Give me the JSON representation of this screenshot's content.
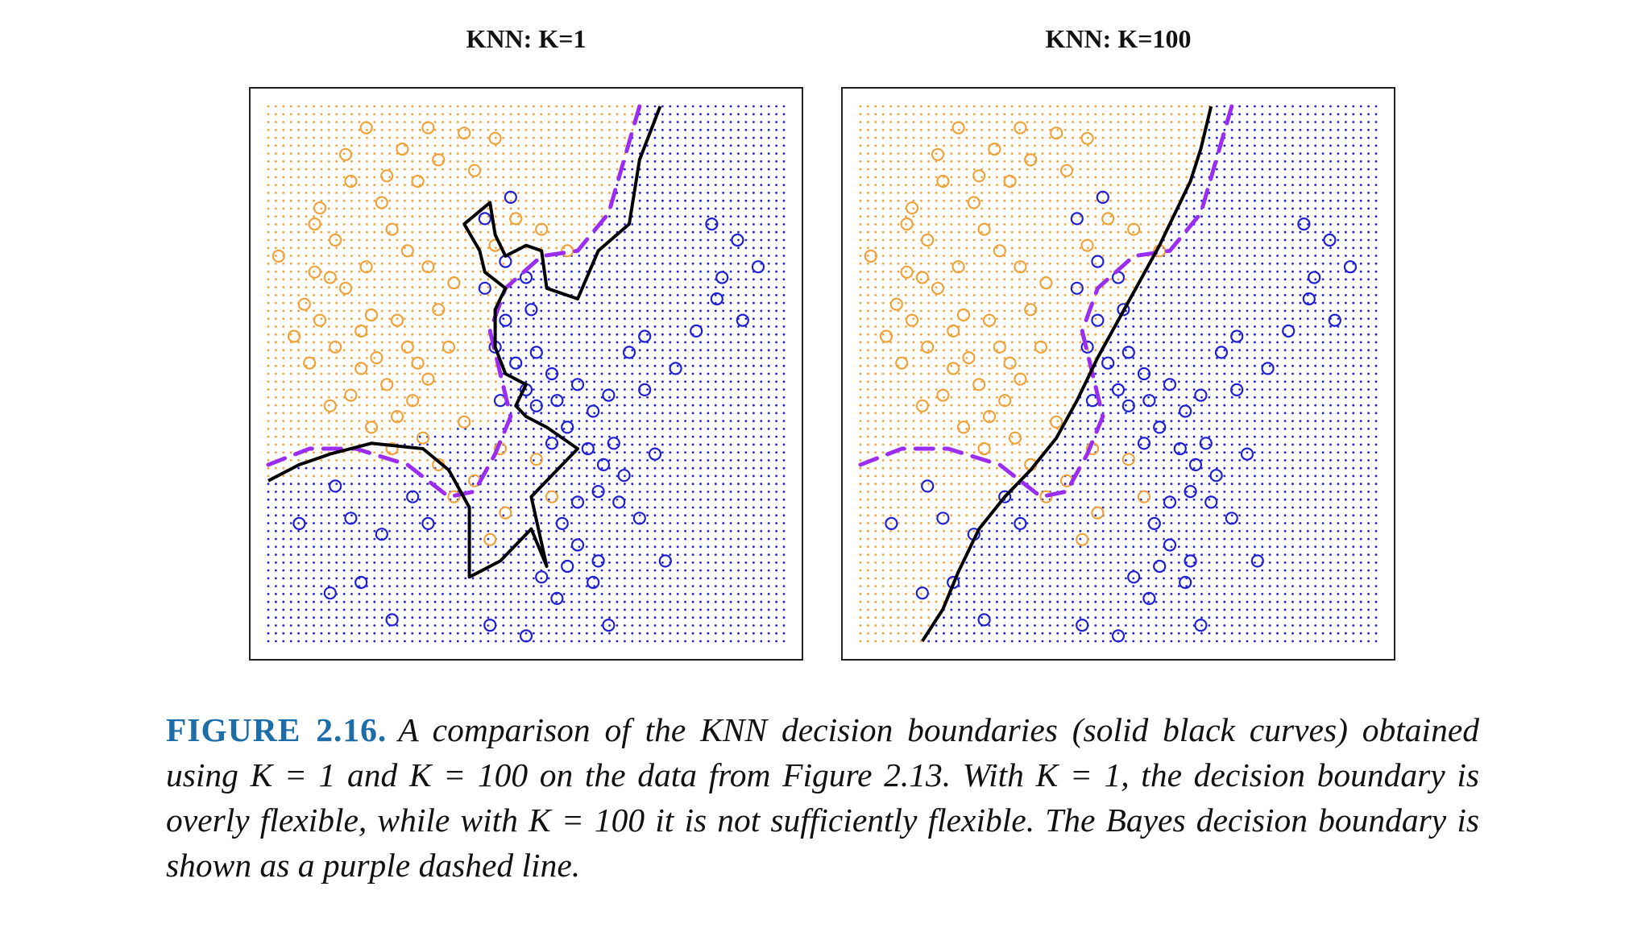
{
  "figure": {
    "label": "FIGURE 2.16.",
    "caption": "A comparison of the KNN decision boundaries (solid black curves) obtained using K = 1 and K = 100 on the data from Figure 2.13. With K = 1, the decision boundary is overly flexible, while with K = 100 it is not sufficiently flexible. The Bayes decision boundary is shown as a purple dashed line."
  },
  "colors": {
    "orange": "#f0a23a",
    "blue": "#1f1fd6",
    "boundary": "#000000",
    "bayes": "#9b2df0",
    "frame": "#222222"
  },
  "chart_data": [
    {
      "type": "scatter",
      "title": "KNN: K=1",
      "xlim": [
        0,
        1
      ],
      "ylim": [
        0,
        1
      ],
      "grid": "dotted background grid colored by predicted class",
      "series": [
        {
          "class": "orange",
          "points": [
            [
              0.02,
              0.72
            ],
            [
              0.09,
              0.78
            ],
            [
              0.1,
              0.81
            ],
            [
              0.13,
              0.75
            ],
            [
              0.12,
              0.68
            ],
            [
              0.15,
              0.66
            ],
            [
              0.18,
              0.58
            ],
            [
              0.2,
              0.61
            ],
            [
              0.25,
              0.6
            ],
            [
              0.27,
              0.55
            ],
            [
              0.29,
              0.52
            ],
            [
              0.31,
              0.49
            ],
            [
              0.28,
              0.45
            ],
            [
              0.25,
              0.42
            ],
            [
              0.23,
              0.48
            ],
            [
              0.21,
              0.53
            ],
            [
              0.18,
              0.51
            ],
            [
              0.16,
              0.46
            ],
            [
              0.13,
              0.55
            ],
            [
              0.1,
              0.6
            ],
            [
              0.07,
              0.63
            ],
            [
              0.05,
              0.57
            ],
            [
              0.08,
              0.52
            ],
            [
              0.12,
              0.44
            ],
            [
              0.2,
              0.4
            ],
            [
              0.24,
              0.36
            ],
            [
              0.3,
              0.38
            ],
            [
              0.33,
              0.62
            ],
            [
              0.36,
              0.67
            ],
            [
              0.31,
              0.7
            ],
            [
              0.27,
              0.73
            ],
            [
              0.24,
              0.77
            ],
            [
              0.22,
              0.82
            ],
            [
              0.29,
              0.86
            ],
            [
              0.33,
              0.9
            ],
            [
              0.4,
              0.88
            ],
            [
              0.44,
              0.94
            ],
            [
              0.38,
              0.95
            ],
            [
              0.31,
              0.96
            ],
            [
              0.26,
              0.92
            ],
            [
              0.23,
              0.87
            ],
            [
              0.19,
              0.96
            ],
            [
              0.15,
              0.91
            ],
            [
              0.16,
              0.86
            ],
            [
              0.44,
              0.74
            ],
            [
              0.48,
              0.79
            ],
            [
              0.53,
              0.77
            ],
            [
              0.58,
              0.73
            ],
            [
              0.33,
              0.33
            ],
            [
              0.38,
              0.41
            ],
            [
              0.45,
              0.36
            ],
            [
              0.52,
              0.34
            ],
            [
              0.55,
              0.27
            ],
            [
              0.46,
              0.24
            ],
            [
              0.43,
              0.19
            ],
            [
              0.36,
              0.27
            ],
            [
              0.4,
              0.3
            ],
            [
              0.19,
              0.7
            ],
            [
              0.09,
              0.69
            ],
            [
              0.35,
              0.55
            ]
          ]
        },
        {
          "class": "blue",
          "points": [
            [
              0.42,
              0.66
            ],
            [
              0.46,
              0.71
            ],
            [
              0.5,
              0.68
            ],
            [
              0.51,
              0.62
            ],
            [
              0.46,
              0.6
            ],
            [
              0.44,
              0.55
            ],
            [
              0.48,
              0.52
            ],
            [
              0.52,
              0.54
            ],
            [
              0.55,
              0.5
            ],
            [
              0.5,
              0.47
            ],
            [
              0.45,
              0.45
            ],
            [
              0.52,
              0.44
            ],
            [
              0.56,
              0.45
            ],
            [
              0.6,
              0.48
            ],
            [
              0.63,
              0.43
            ],
            [
              0.66,
              0.46
            ],
            [
              0.58,
              0.4
            ],
            [
              0.55,
              0.37
            ],
            [
              0.62,
              0.36
            ],
            [
              0.65,
              0.33
            ],
            [
              0.67,
              0.37
            ],
            [
              0.69,
              0.31
            ],
            [
              0.64,
              0.28
            ],
            [
              0.6,
              0.26
            ],
            [
              0.57,
              0.22
            ],
            [
              0.6,
              0.18
            ],
            [
              0.64,
              0.15
            ],
            [
              0.58,
              0.14
            ],
            [
              0.53,
              0.12
            ],
            [
              0.56,
              0.08
            ],
            [
              0.63,
              0.11
            ],
            [
              0.68,
              0.26
            ],
            [
              0.72,
              0.23
            ],
            [
              0.75,
              0.35
            ],
            [
              0.73,
              0.57
            ],
            [
              0.83,
              0.58
            ],
            [
              0.87,
              0.64
            ],
            [
              0.92,
              0.6
            ],
            [
              0.95,
              0.7
            ],
            [
              0.91,
              0.75
            ],
            [
              0.86,
              0.78
            ],
            [
              0.88,
              0.68
            ],
            [
              0.79,
              0.51
            ],
            [
              0.7,
              0.54
            ],
            [
              0.73,
              0.47
            ],
            [
              0.42,
              0.79
            ],
            [
              0.47,
              0.83
            ],
            [
              0.06,
              0.22
            ],
            [
              0.13,
              0.29
            ],
            [
              0.16,
              0.23
            ],
            [
              0.22,
              0.2
            ],
            [
              0.31,
              0.22
            ],
            [
              0.28,
              0.27
            ],
            [
              0.18,
              0.11
            ],
            [
              0.12,
              0.09
            ],
            [
              0.24,
              0.04
            ],
            [
              0.43,
              0.03
            ],
            [
              0.5,
              0.01
            ],
            [
              0.66,
              0.03
            ],
            [
              0.77,
              0.15
            ]
          ]
        }
      ],
      "boundary_k1": [
        [
          0.0,
          0.3
        ],
        [
          0.06,
          0.33
        ],
        [
          0.12,
          0.35
        ],
        [
          0.2,
          0.37
        ],
        [
          0.3,
          0.36
        ],
        [
          0.35,
          0.32
        ],
        [
          0.39,
          0.25
        ],
        [
          0.39,
          0.12
        ],
        [
          0.45,
          0.15
        ],
        [
          0.51,
          0.21
        ],
        [
          0.54,
          0.14
        ],
        [
          0.51,
          0.27
        ],
        [
          0.56,
          0.32
        ],
        [
          0.6,
          0.36
        ],
        [
          0.54,
          0.4
        ],
        [
          0.5,
          0.42
        ],
        [
          0.48,
          0.44
        ],
        [
          0.5,
          0.48
        ],
        [
          0.46,
          0.5
        ],
        [
          0.44,
          0.55
        ],
        [
          0.44,
          0.62
        ],
        [
          0.46,
          0.66
        ],
        [
          0.42,
          0.69
        ],
        [
          0.41,
          0.73
        ],
        [
          0.38,
          0.78
        ],
        [
          0.43,
          0.82
        ],
        [
          0.44,
          0.76
        ],
        [
          0.46,
          0.72
        ],
        [
          0.5,
          0.74
        ],
        [
          0.53,
          0.73
        ],
        [
          0.54,
          0.66
        ],
        [
          0.6,
          0.64
        ],
        [
          0.64,
          0.73
        ],
        [
          0.7,
          0.78
        ],
        [
          0.72,
          0.9
        ],
        [
          0.76,
          1.0
        ]
      ],
      "bayes": [
        [
          0.0,
          0.33
        ],
        [
          0.08,
          0.36
        ],
        [
          0.17,
          0.36
        ],
        [
          0.27,
          0.33
        ],
        [
          0.35,
          0.27
        ],
        [
          0.4,
          0.28
        ],
        [
          0.44,
          0.35
        ],
        [
          0.47,
          0.42
        ],
        [
          0.45,
          0.5
        ],
        [
          0.43,
          0.58
        ],
        [
          0.46,
          0.66
        ],
        [
          0.53,
          0.72
        ],
        [
          0.6,
          0.73
        ],
        [
          0.66,
          0.8
        ],
        [
          0.69,
          0.9
        ],
        [
          0.72,
          1.0
        ]
      ]
    },
    {
      "type": "scatter",
      "title": "KNN: K=100",
      "xlim": [
        0,
        1
      ],
      "ylim": [
        0,
        1
      ],
      "grid": "dotted background grid colored by predicted class",
      "series": "same data as KNN: K=1",
      "boundary_k100": [
        [
          0.12,
          0.0
        ],
        [
          0.16,
          0.06
        ],
        [
          0.19,
          0.13
        ],
        [
          0.23,
          0.21
        ],
        [
          0.28,
          0.27
        ],
        [
          0.33,
          0.32
        ],
        [
          0.38,
          0.38
        ],
        [
          0.42,
          0.45
        ],
        [
          0.46,
          0.53
        ],
        [
          0.5,
          0.6
        ],
        [
          0.54,
          0.67
        ],
        [
          0.58,
          0.74
        ],
        [
          0.61,
          0.8
        ],
        [
          0.64,
          0.86
        ],
        [
          0.66,
          0.92
        ],
        [
          0.68,
          1.0
        ]
      ],
      "bayes": [
        [
          0.0,
          0.33
        ],
        [
          0.08,
          0.36
        ],
        [
          0.17,
          0.36
        ],
        [
          0.27,
          0.33
        ],
        [
          0.35,
          0.27
        ],
        [
          0.4,
          0.28
        ],
        [
          0.44,
          0.35
        ],
        [
          0.47,
          0.42
        ],
        [
          0.45,
          0.5
        ],
        [
          0.43,
          0.58
        ],
        [
          0.46,
          0.66
        ],
        [
          0.53,
          0.72
        ],
        [
          0.6,
          0.73
        ],
        [
          0.66,
          0.8
        ],
        [
          0.69,
          0.9
        ],
        [
          0.72,
          1.0
        ]
      ]
    }
  ]
}
